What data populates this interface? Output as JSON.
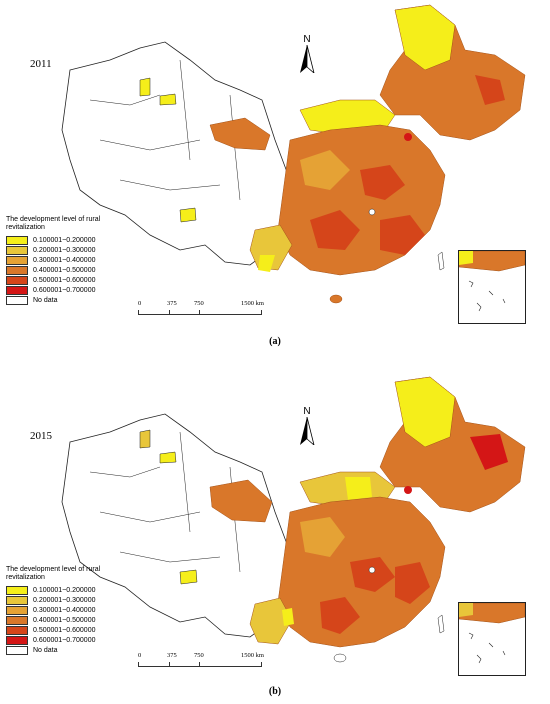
{
  "maps": [
    {
      "year": "2011",
      "caption": "(a)"
    },
    {
      "year": "2015",
      "caption": "(b)"
    }
  ],
  "north_label": "N",
  "legend": {
    "title": "The development level of rural revitalization",
    "classes": [
      {
        "label": "0.100001~0.200000",
        "color": "#f5ee1a"
      },
      {
        "label": "0.200001~0.300000",
        "color": "#e8c63a"
      },
      {
        "label": "0.300001~0.400000",
        "color": "#e5a235"
      },
      {
        "label": "0.400001~0.500000",
        "color": "#d9772a"
      },
      {
        "label": "0.500001~0.600000",
        "color": "#d5451a"
      },
      {
        "label": "0.600001~0.700000",
        "color": "#d41616"
      },
      {
        "label": "No data",
        "color": "#ffffff"
      }
    ]
  },
  "scale": {
    "ticks": [
      "0",
      "375",
      "750",
      "1500 km"
    ]
  }
}
